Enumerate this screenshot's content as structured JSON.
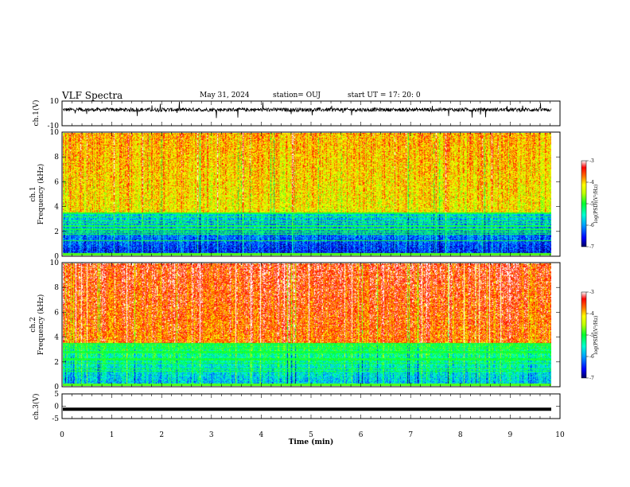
{
  "header": {
    "title": "VLF Spectra",
    "date": "May 31, 2024",
    "station": "station= OUJ",
    "start": "start  UT  =   17: 20: 0"
  },
  "chart_data": [
    {
      "type": "line",
      "panel": "ch1-waveform",
      "ylabel": "ch.1(V)",
      "ylim": [
        -10,
        10
      ],
      "yticks": [
        "10",
        "-10"
      ],
      "xlim": [
        0,
        10
      ],
      "baseline": 3,
      "noise_range": [
        1.5,
        4.5
      ]
    },
    {
      "type": "heatmap",
      "panel": "ch1-spectrogram",
      "ylabel": [
        "ch.1",
        "Frequency  (kHz)"
      ],
      "ylim": [
        0,
        10
      ],
      "yticks": [
        "0",
        "2",
        "4",
        "6",
        "8",
        "10"
      ],
      "xlim": [
        0,
        10
      ],
      "data_end_min": 9.83,
      "colorbar": {
        "label": "log(PSD)(V²/Hz)",
        "range": [
          -7,
          -3
        ],
        "ticks": [
          "-3",
          "-4",
          "-5",
          "-6",
          "-7"
        ]
      }
    },
    {
      "type": "heatmap",
      "panel": "ch2-spectrogram",
      "ylabel": [
        "ch.2",
        "Frequency  (kHz)"
      ],
      "ylim": [
        0,
        10
      ],
      "yticks": [
        "0",
        "2",
        "4",
        "6",
        "8",
        "10"
      ],
      "xlim": [
        0,
        10
      ],
      "data_end_min": 9.83,
      "colorbar": {
        "label": "log(PSD)(V²/Hz)",
        "range": [
          -7,
          -3
        ],
        "ticks": [
          "-3",
          "-4",
          "-5",
          "-6",
          "-7"
        ]
      }
    },
    {
      "type": "line",
      "panel": "ch3-waveform",
      "ylabel": "ch.3(V)",
      "ylim": [
        -5,
        5
      ],
      "yticks": [
        "5",
        "0",
        "-5"
      ],
      "xlim": [
        0,
        10
      ],
      "baseline": -1.2,
      "xlabel": "Time  (min)",
      "xticks": [
        "0",
        "1",
        "2",
        "3",
        "4",
        "5",
        "6",
        "7",
        "8",
        "9",
        "10"
      ]
    }
  ],
  "colors": {
    "waveform": "#000000",
    "colormap": [
      "#000080",
      "#0000ff",
      "#00a0ff",
      "#00ffd0",
      "#00ff40",
      "#a0ff00",
      "#ffff00",
      "#ff8000",
      "#ff0000",
      "#ffffff"
    ]
  }
}
